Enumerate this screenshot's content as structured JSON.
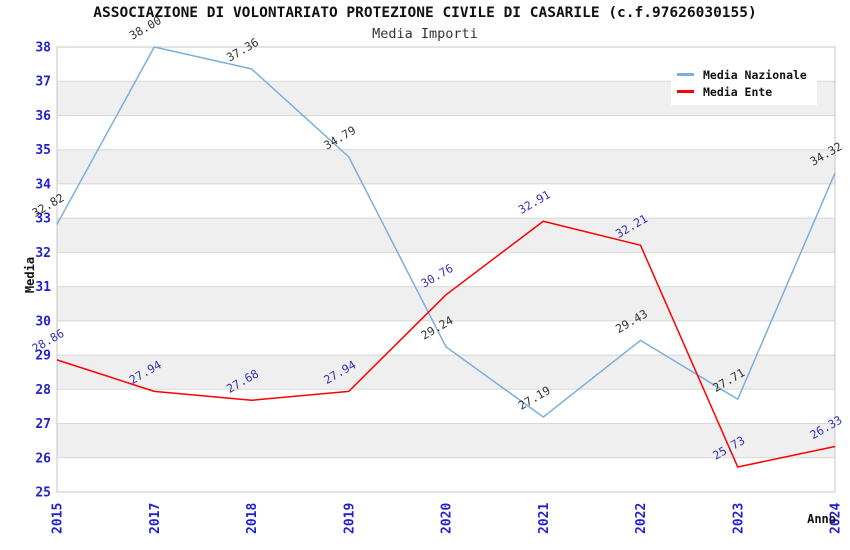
{
  "chart_data": {
    "type": "line",
    "title": "ASSOCIAZIONE DI VOLONTARIATO PROTEZIONE CIVILE DI CASARILE (c.f.97626030155)",
    "subtitle": "Media Importi",
    "xlabel": "Anno",
    "ylabel": "Media",
    "categories": [
      "2015",
      "2017",
      "2018",
      "2019",
      "2020",
      "2021",
      "2022",
      "2023",
      "2024"
    ],
    "series": [
      {
        "name": "Media Nazionale",
        "color": "#7caede",
        "label_color": "#333333",
        "values": [
          32.82,
          38.0,
          37.36,
          34.79,
          29.24,
          27.19,
          29.43,
          27.71,
          34.32
        ]
      },
      {
        "name": "Media Ente",
        "color": "#ff0000",
        "label_color": "#3333b3",
        "values": [
          28.86,
          27.94,
          27.68,
          27.94,
          30.76,
          32.91,
          32.21,
          25.73,
          26.33
        ]
      }
    ],
    "ylim": [
      25,
      38
    ],
    "ytick_step": 1,
    "tick_label_color": "#2222cc",
    "value_label_format": "2-decimals",
    "value_label_rotation_deg": -30,
    "grid": {
      "alternating_bands": true,
      "band_color": "#efefef",
      "line_color": "#d8d8d8",
      "border_color": "#c6c6c6"
    },
    "legend": {
      "position": "top-right",
      "items": [
        "Media Nazionale",
        "Media Ente"
      ]
    }
  }
}
